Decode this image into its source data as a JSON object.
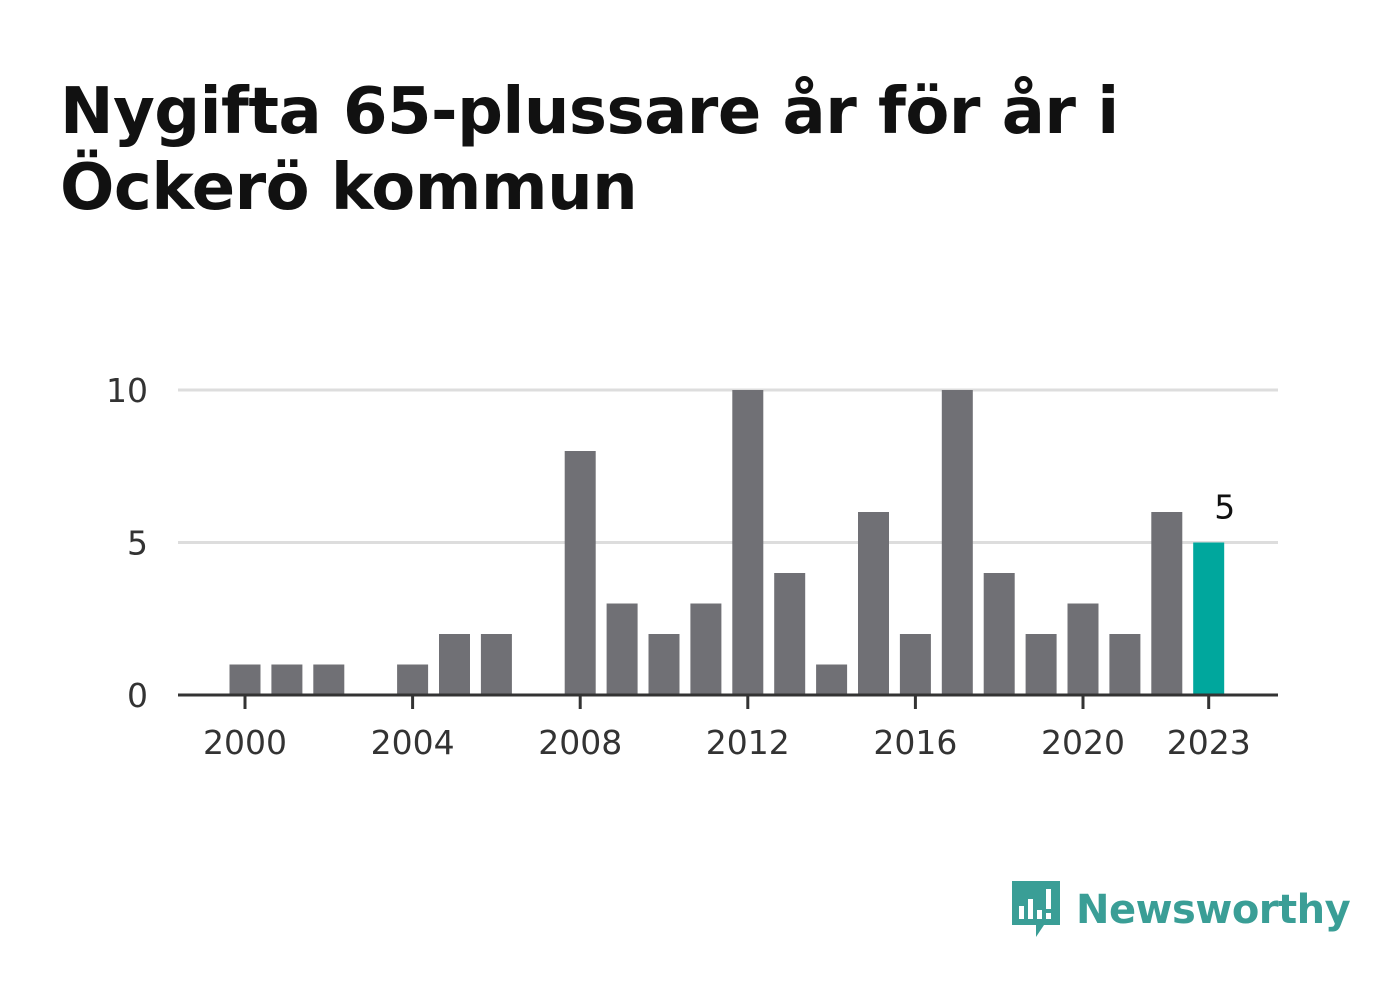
{
  "title": "Nygifta 65-plussare år för år i Öckerö kommun",
  "brand": {
    "name": "Newsworthy",
    "icon": "bar-chart-speech-bubble-icon",
    "color": "#3a9e96"
  },
  "colors": {
    "bar": "#707075",
    "highlight": "#00a79d",
    "grid": "#dddddd",
    "axis": "#333333"
  },
  "chart_data": {
    "type": "bar",
    "x": [
      2000,
      2001,
      2002,
      2003,
      2004,
      2005,
      2006,
      2007,
      2008,
      2009,
      2010,
      2011,
      2012,
      2013,
      2014,
      2015,
      2016,
      2017,
      2018,
      2019,
      2020,
      2021,
      2022,
      2023
    ],
    "values": [
      1,
      1,
      1,
      0,
      1,
      2,
      2,
      0,
      8,
      3,
      2,
      3,
      10,
      4,
      1,
      6,
      2,
      10,
      4,
      2,
      3,
      2,
      6,
      5
    ],
    "highlight": 2023,
    "highlight_label": "5",
    "ylim": [
      0,
      10
    ],
    "yticks": [
      0,
      5,
      10
    ],
    "xticks": [
      2000,
      2004,
      2008,
      2012,
      2016,
      2020,
      2023
    ],
    "grid": true,
    "xlabel": "",
    "ylabel": ""
  }
}
